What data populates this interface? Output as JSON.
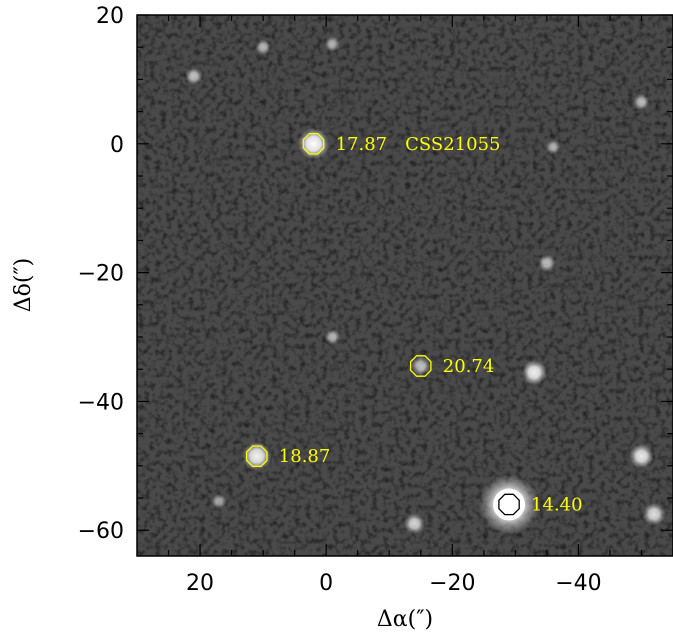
{
  "axes": {
    "xlabel": "Δα(″)",
    "ylabel": "Δδ(″)",
    "xlim": [
      30,
      -55
    ],
    "ylim": [
      -64,
      20
    ],
    "x_ticks": [
      {
        "value": 20,
        "label": "20"
      },
      {
        "value": 0,
        "label": "0"
      },
      {
        "value": -20,
        "label": "−20"
      },
      {
        "value": -40,
        "label": "−40"
      }
    ],
    "y_ticks": [
      {
        "value": 20,
        "label": "20"
      },
      {
        "value": 0,
        "label": "0"
      },
      {
        "value": -20,
        "label": "−20"
      },
      {
        "value": -40,
        "label": "−40"
      },
      {
        "value": -60,
        "label": "−60"
      }
    ]
  },
  "sources": [
    {
      "x": 2,
      "y": 0,
      "mag": "17.87",
      "name": "CSS21055",
      "marker_color": "#ffff00",
      "brightness": 1.0
    },
    {
      "x": -15,
      "y": -34.5,
      "mag": "20.74",
      "name": "",
      "marker_color": "#ffff00",
      "brightness": 0.35
    },
    {
      "x": 11,
      "y": -48.5,
      "mag": "18.87",
      "name": "",
      "marker_color": "#ffff00",
      "brightness": 0.85
    },
    {
      "x": -29,
      "y": -56,
      "mag": "14.40",
      "name": "",
      "marker_color": "#000000",
      "brightness": 1.0
    }
  ],
  "field_stars": [
    {
      "x": -33,
      "y": -35.5,
      "brightness": 0.85
    },
    {
      "x": -50,
      "y": -48.5,
      "brightness": 0.8
    },
    {
      "x": -52,
      "y": -57.5,
      "brightness": 0.7
    },
    {
      "x": -14,
      "y": -59,
      "brightness": 0.6
    },
    {
      "x": -35,
      "y": -18.5,
      "brightness": 0.4
    },
    {
      "x": 21,
      "y": 10.5,
      "brightness": 0.4
    },
    {
      "x": 10,
      "y": 15,
      "brightness": 0.3
    },
    {
      "x": -1,
      "y": 15.5,
      "brightness": 0.3
    },
    {
      "x": -50,
      "y": 6.5,
      "brightness": 0.35
    },
    {
      "x": -1,
      "y": -30,
      "brightness": 0.3
    },
    {
      "x": -36,
      "y": -0.5,
      "brightness": 0.25
    },
    {
      "x": 17,
      "y": -55.5,
      "brightness": 0.25
    }
  ],
  "colors": {
    "background": "#4a4a4a",
    "label": "#ffff00"
  }
}
